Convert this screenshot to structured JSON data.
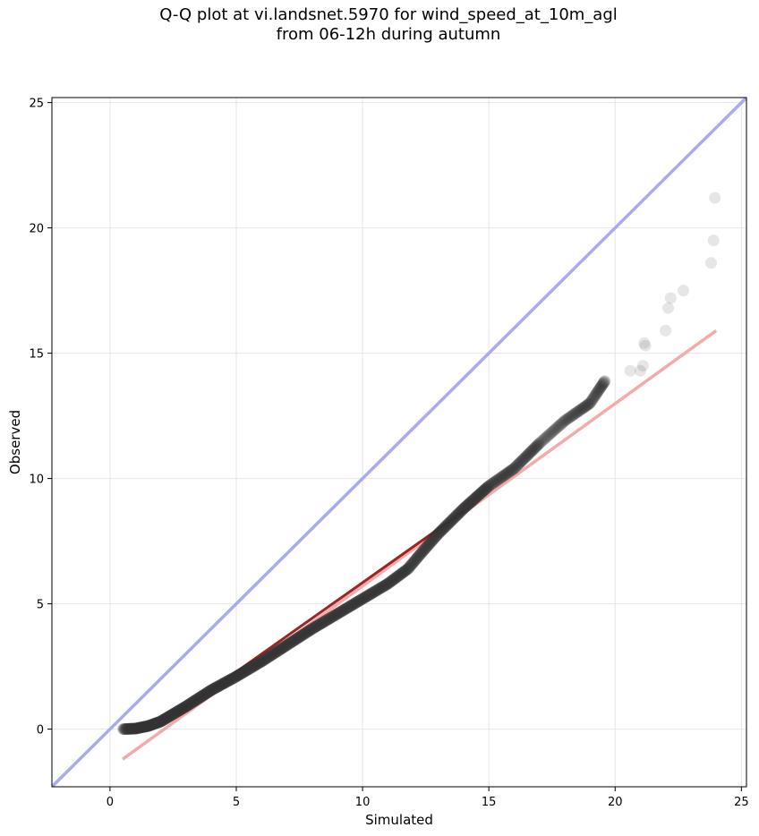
{
  "chart_data": {
    "type": "scatter",
    "title": "Q-Q plot at vi.landsnet.5970 for wind_speed_at_10m_agl\nfrom 06-12h during autumn",
    "xlabel": "Simulated",
    "ylabel": "Observed",
    "xlim": [
      -2.3,
      25.2
    ],
    "ylim": [
      -2.3,
      25.2
    ],
    "xticks": [
      0,
      5,
      10,
      15,
      20,
      25
    ],
    "yticks": [
      0,
      5,
      10,
      15,
      20,
      25
    ],
    "grid": true,
    "reference_line": {
      "x": [
        -2.3,
        25.2
      ],
      "y": [
        -2.3,
        25.2
      ],
      "color": "#aaaaf0"
    },
    "fit_line": {
      "x": [
        0.5,
        24.0
      ],
      "y": [
        -1.2,
        15.9
      ],
      "color": "#f5aaaa"
    },
    "highlight_segment": {
      "x": [
        2.5,
        14.0
      ],
      "y": [
        0.5,
        8.7
      ],
      "color": "#8b0000"
    },
    "point_color": "#333333",
    "quantile_curve": [
      [
        0.5,
        0.0
      ],
      [
        1.0,
        0.02
      ],
      [
        1.5,
        0.12
      ],
      [
        2.0,
        0.3
      ],
      [
        3.0,
        0.9
      ],
      [
        4.0,
        1.55
      ],
      [
        5.0,
        2.1
      ],
      [
        6.0,
        2.7
      ],
      [
        7.0,
        3.35
      ],
      [
        8.0,
        4.0
      ],
      [
        9.0,
        4.6
      ],
      [
        10.0,
        5.2
      ],
      [
        11.0,
        5.8
      ],
      [
        11.8,
        6.4
      ],
      [
        12.3,
        7.0
      ],
      [
        13.0,
        7.8
      ],
      [
        14.0,
        8.8
      ],
      [
        15.0,
        9.7
      ],
      [
        16.0,
        10.4
      ],
      [
        17.0,
        11.4
      ],
      [
        18.0,
        12.3
      ],
      [
        19.0,
        13.0
      ],
      [
        19.6,
        13.9
      ]
    ],
    "n_curve_points": 600,
    "outlier_points": [
      [
        20.6,
        14.3
      ],
      [
        21.0,
        14.3
      ],
      [
        21.1,
        14.5
      ],
      [
        21.2,
        15.3
      ],
      [
        21.15,
        15.4
      ],
      [
        22.0,
        15.9
      ],
      [
        22.1,
        16.8
      ],
      [
        22.2,
        17.2
      ],
      [
        22.7,
        17.5
      ],
      [
        23.8,
        18.6
      ],
      [
        23.9,
        19.5
      ],
      [
        23.95,
        21.2
      ]
    ]
  }
}
